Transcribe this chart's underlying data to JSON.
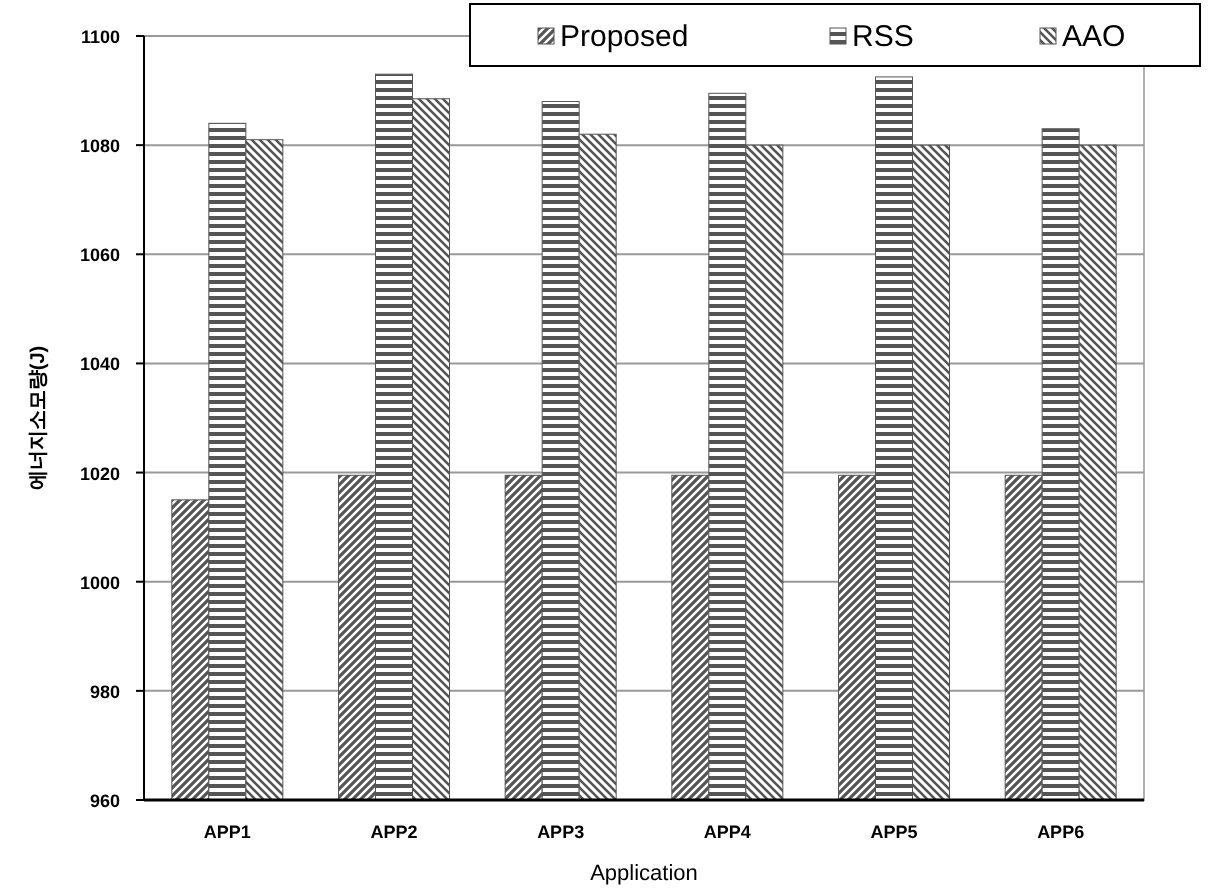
{
  "chart_data": {
    "type": "bar",
    "xlabel": "Application",
    "ylabel": "에너지소모량(J)",
    "categories": [
      "APP1",
      "APP2",
      "APP3",
      "APP4",
      "APP5",
      "APP6"
    ],
    "series": [
      {
        "name": "Proposed",
        "color": "#555555",
        "values": [
          1015,
          1019.5,
          1019.5,
          1019.5,
          1019.5,
          1019.5
        ]
      },
      {
        "name": "RSS",
        "color": "#555555",
        "values": [
          1084,
          1093,
          1088,
          1089.5,
          1092.5,
          1083
        ]
      },
      {
        "name": "AAO",
        "color": "#555555",
        "values": [
          1081,
          1088.5,
          1082,
          1080,
          1080,
          1080
        ]
      }
    ],
    "ylim": [
      960,
      1100
    ],
    "yticks": [
      960,
      980,
      1000,
      1020,
      1040,
      1060,
      1080,
      1100
    ],
    "grid": "y",
    "legend": "top right"
  }
}
